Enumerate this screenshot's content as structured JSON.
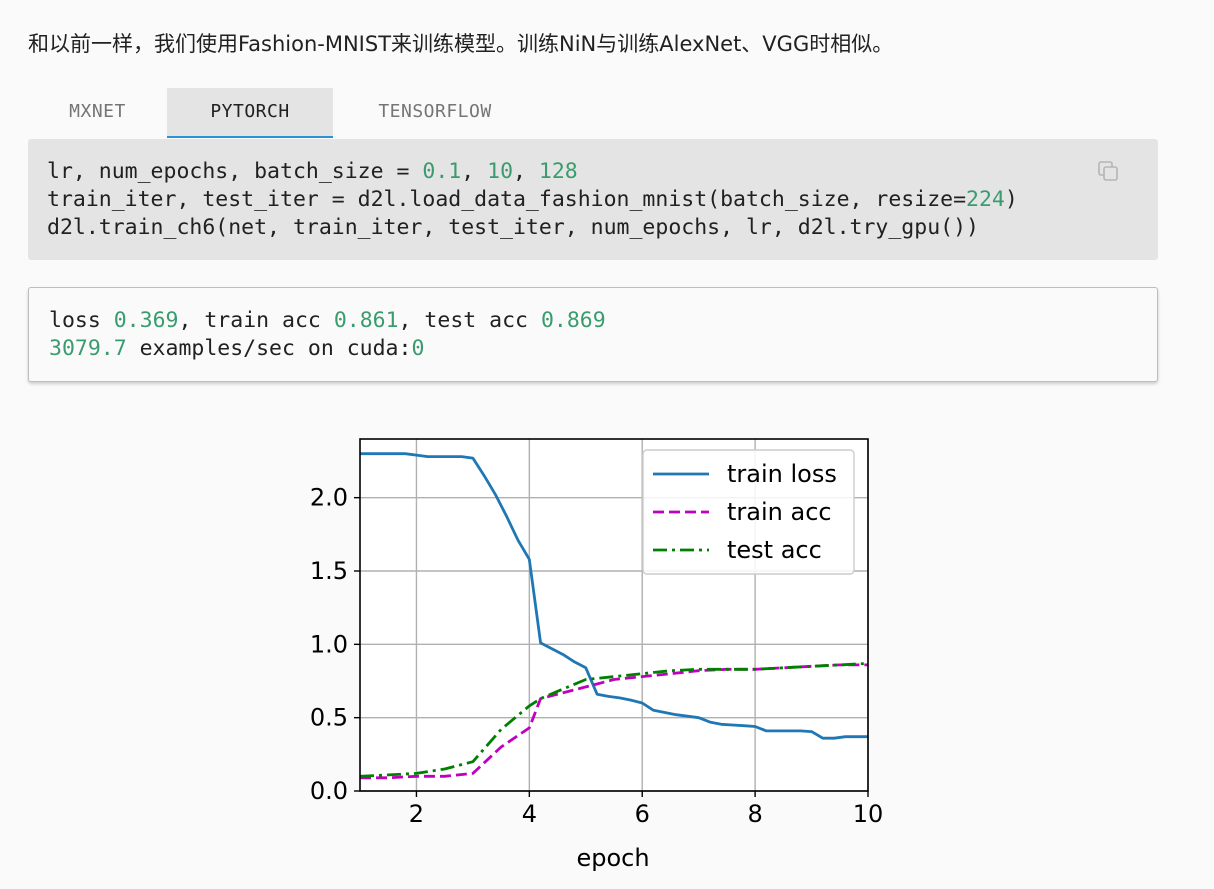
{
  "intro_text": "和以前一样，我们使用Fashion-MNIST来训练模型。训练NiN与训练AlexNet、VGG时相似。",
  "tabs": [
    {
      "label": "MXNET",
      "active": false
    },
    {
      "label": "PYTORCH",
      "active": true
    },
    {
      "label": "TENSORFLOW",
      "active": false
    }
  ],
  "code": {
    "line1": {
      "a": "lr, num_epochs, batch_size = ",
      "n1": "0.1",
      "s1": ", ",
      "n2": "10",
      "s2": ", ",
      "n3": "128"
    },
    "line2": {
      "a": "train_iter, test_iter = d2l.load_data_fashion_mnist(batch_size, resize=",
      "n1": "224",
      "b": ")"
    },
    "line3": "d2l.train_ch6(net, train_iter, test_iter, num_epochs, lr, d2l.try_gpu())",
    "copy_icon": "copy-icon"
  },
  "output": {
    "line1": {
      "a": "loss ",
      "n1": "0.369",
      "b": ", train acc ",
      "n2": "0.861",
      "c": ", test acc ",
      "n3": "0.869"
    },
    "line2": {
      "n1": "3079.7",
      "a": " examples/sec on cuda:",
      "n2": "0"
    }
  },
  "chart_data": {
    "type": "line",
    "xlabel": "epoch",
    "ylabel": "",
    "xlim": [
      1,
      10
    ],
    "ylim": [
      0,
      2.4
    ],
    "xticks": [
      2,
      4,
      6,
      8,
      10
    ],
    "yticks": [
      0.0,
      0.5,
      1.0,
      1.5,
      2.0
    ],
    "xtick_labels": [
      "2",
      "4",
      "6",
      "8",
      "10"
    ],
    "ytick_labels": [
      "0.0",
      "0.5",
      "1.0",
      "1.5",
      "2.0"
    ],
    "grid": true,
    "legend_position": "top-right",
    "series": [
      {
        "name": "train loss",
        "color": "#1f77b4",
        "style": "solid",
        "x": [
          1.0,
          1.2,
          1.4,
          1.6,
          1.8,
          2.0,
          2.2,
          2.4,
          2.6,
          2.8,
          3.0,
          3.2,
          3.4,
          3.6,
          3.8,
          4.0,
          4.2,
          4.4,
          4.6,
          4.8,
          5.0,
          5.2,
          5.4,
          5.6,
          5.8,
          6.0,
          6.2,
          6.4,
          6.6,
          6.8,
          7.0,
          7.2,
          7.4,
          7.6,
          7.8,
          8.0,
          8.2,
          8.4,
          8.6,
          8.8,
          9.0,
          9.2,
          9.4,
          9.6,
          9.8,
          10.0
        ],
        "y": [
          2.3,
          2.3,
          2.3,
          2.3,
          2.3,
          2.29,
          2.28,
          2.28,
          2.28,
          2.28,
          2.27,
          2.15,
          2.02,
          1.87,
          1.71,
          1.58,
          1.01,
          0.97,
          0.93,
          0.88,
          0.84,
          0.66,
          0.645,
          0.635,
          0.62,
          0.6,
          0.55,
          0.535,
          0.52,
          0.51,
          0.5,
          0.47,
          0.455,
          0.45,
          0.445,
          0.44,
          0.41,
          0.41,
          0.41,
          0.41,
          0.405,
          0.36,
          0.36,
          0.37,
          0.37,
          0.37
        ]
      },
      {
        "name": "train acc",
        "color": "#bf00bf",
        "style": "dashed",
        "x": [
          1.0,
          1.5,
          2.0,
          2.5,
          3.0,
          3.5,
          4.0,
          4.2,
          4.5,
          5.0,
          5.5,
          6.0,
          6.5,
          7.0,
          7.5,
          8.0,
          8.5,
          9.0,
          9.5,
          10.0
        ],
        "y": [
          0.09,
          0.09,
          0.1,
          0.1,
          0.12,
          0.3,
          0.43,
          0.63,
          0.66,
          0.71,
          0.76,
          0.78,
          0.8,
          0.82,
          0.83,
          0.83,
          0.84,
          0.85,
          0.86,
          0.86
        ]
      },
      {
        "name": "test acc",
        "color": "#008000",
        "style": "dashdot",
        "x": [
          1.0,
          1.5,
          2.0,
          2.5,
          3.0,
          3.5,
          4.0,
          4.2,
          4.5,
          5.0,
          5.5,
          6.0,
          6.5,
          7.0,
          7.5,
          8.0,
          8.5,
          9.0,
          9.5,
          10.0
        ],
        "y": [
          0.1,
          0.11,
          0.12,
          0.15,
          0.2,
          0.42,
          0.58,
          0.63,
          0.68,
          0.76,
          0.78,
          0.8,
          0.82,
          0.83,
          0.83,
          0.83,
          0.84,
          0.85,
          0.86,
          0.87
        ]
      }
    ]
  }
}
